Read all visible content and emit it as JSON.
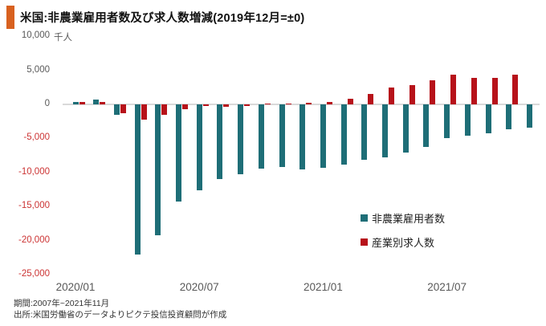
{
  "title": "米国:非農業雇用者数及び求人数増減(2019年12月=±0)",
  "axis": {
    "unit_label": "千人",
    "ytick_labels": [
      "10,000",
      "5,000",
      "0",
      "-5,000",
      "-10,000",
      "-15,000",
      "-20,000",
      "-25,000"
    ],
    "xtick_labels": [
      "2020/01",
      "2020/07",
      "2021/01",
      "2021/07"
    ]
  },
  "legend": {
    "items": [
      {
        "label": "非農業雇用者数",
        "color": "#1e6e77"
      },
      {
        "label": "産業別求人数",
        "color": "#b7121a"
      }
    ]
  },
  "footer": {
    "period": "期間:2007年~2021年11月",
    "source": "出所:米国労働省のデータよりピクテ投信投資顧問が作成"
  },
  "colors": {
    "accent": "#d8611f",
    "payrolls": "#1e6e77",
    "openings": "#b7121a",
    "tick_text": "#595959",
    "negative_tick_text": "#cc3333",
    "zero_line": "#d9d9d9"
  },
  "chart_data": {
    "type": "bar",
    "title": "米国:非農業雇用者数及び求人数増減(2019年12月=±0)",
    "ylabel": "千人",
    "ylim": [
      -25000,
      10000
    ],
    "yticks": [
      10000,
      5000,
      0,
      -5000,
      -10000,
      -15000,
      -20000,
      -25000
    ],
    "xticks": [
      "2020/01",
      "2020/07",
      "2021/01",
      "2021/07"
    ],
    "grid": false,
    "legend_position": "right-middle",
    "categories": [
      "2020/01",
      "2020/02",
      "2020/03",
      "2020/04",
      "2020/05",
      "2020/06",
      "2020/07",
      "2020/08",
      "2020/09",
      "2020/10",
      "2020/11",
      "2020/12",
      "2021/01",
      "2021/02",
      "2021/03",
      "2021/04",
      "2021/05",
      "2021/06",
      "2021/07",
      "2021/08",
      "2021/09",
      "2021/10",
      "2021/11"
    ],
    "series": [
      {
        "name": "非農業雇用者数",
        "color": "#1e6e77",
        "values": [
          300,
          650,
          -1550,
          -22000,
          -19200,
          -14300,
          -12600,
          -11000,
          -10200,
          -9400,
          -9200,
          -9500,
          -9300,
          -8800,
          -8100,
          -7800,
          -7100,
          -6200,
          -5000,
          -4600,
          -4200,
          -3700,
          -3400
        ]
      },
      {
        "name": "産業別求人数",
        "color": "#b7121a",
        "values": [
          400,
          400,
          -1300,
          -2200,
          -1500,
          -700,
          -100,
          -300,
          -200,
          100,
          100,
          200,
          300,
          800,
          1500,
          2500,
          2800,
          3500,
          4400,
          3900,
          3900,
          4300,
          null
        ]
      }
    ]
  }
}
